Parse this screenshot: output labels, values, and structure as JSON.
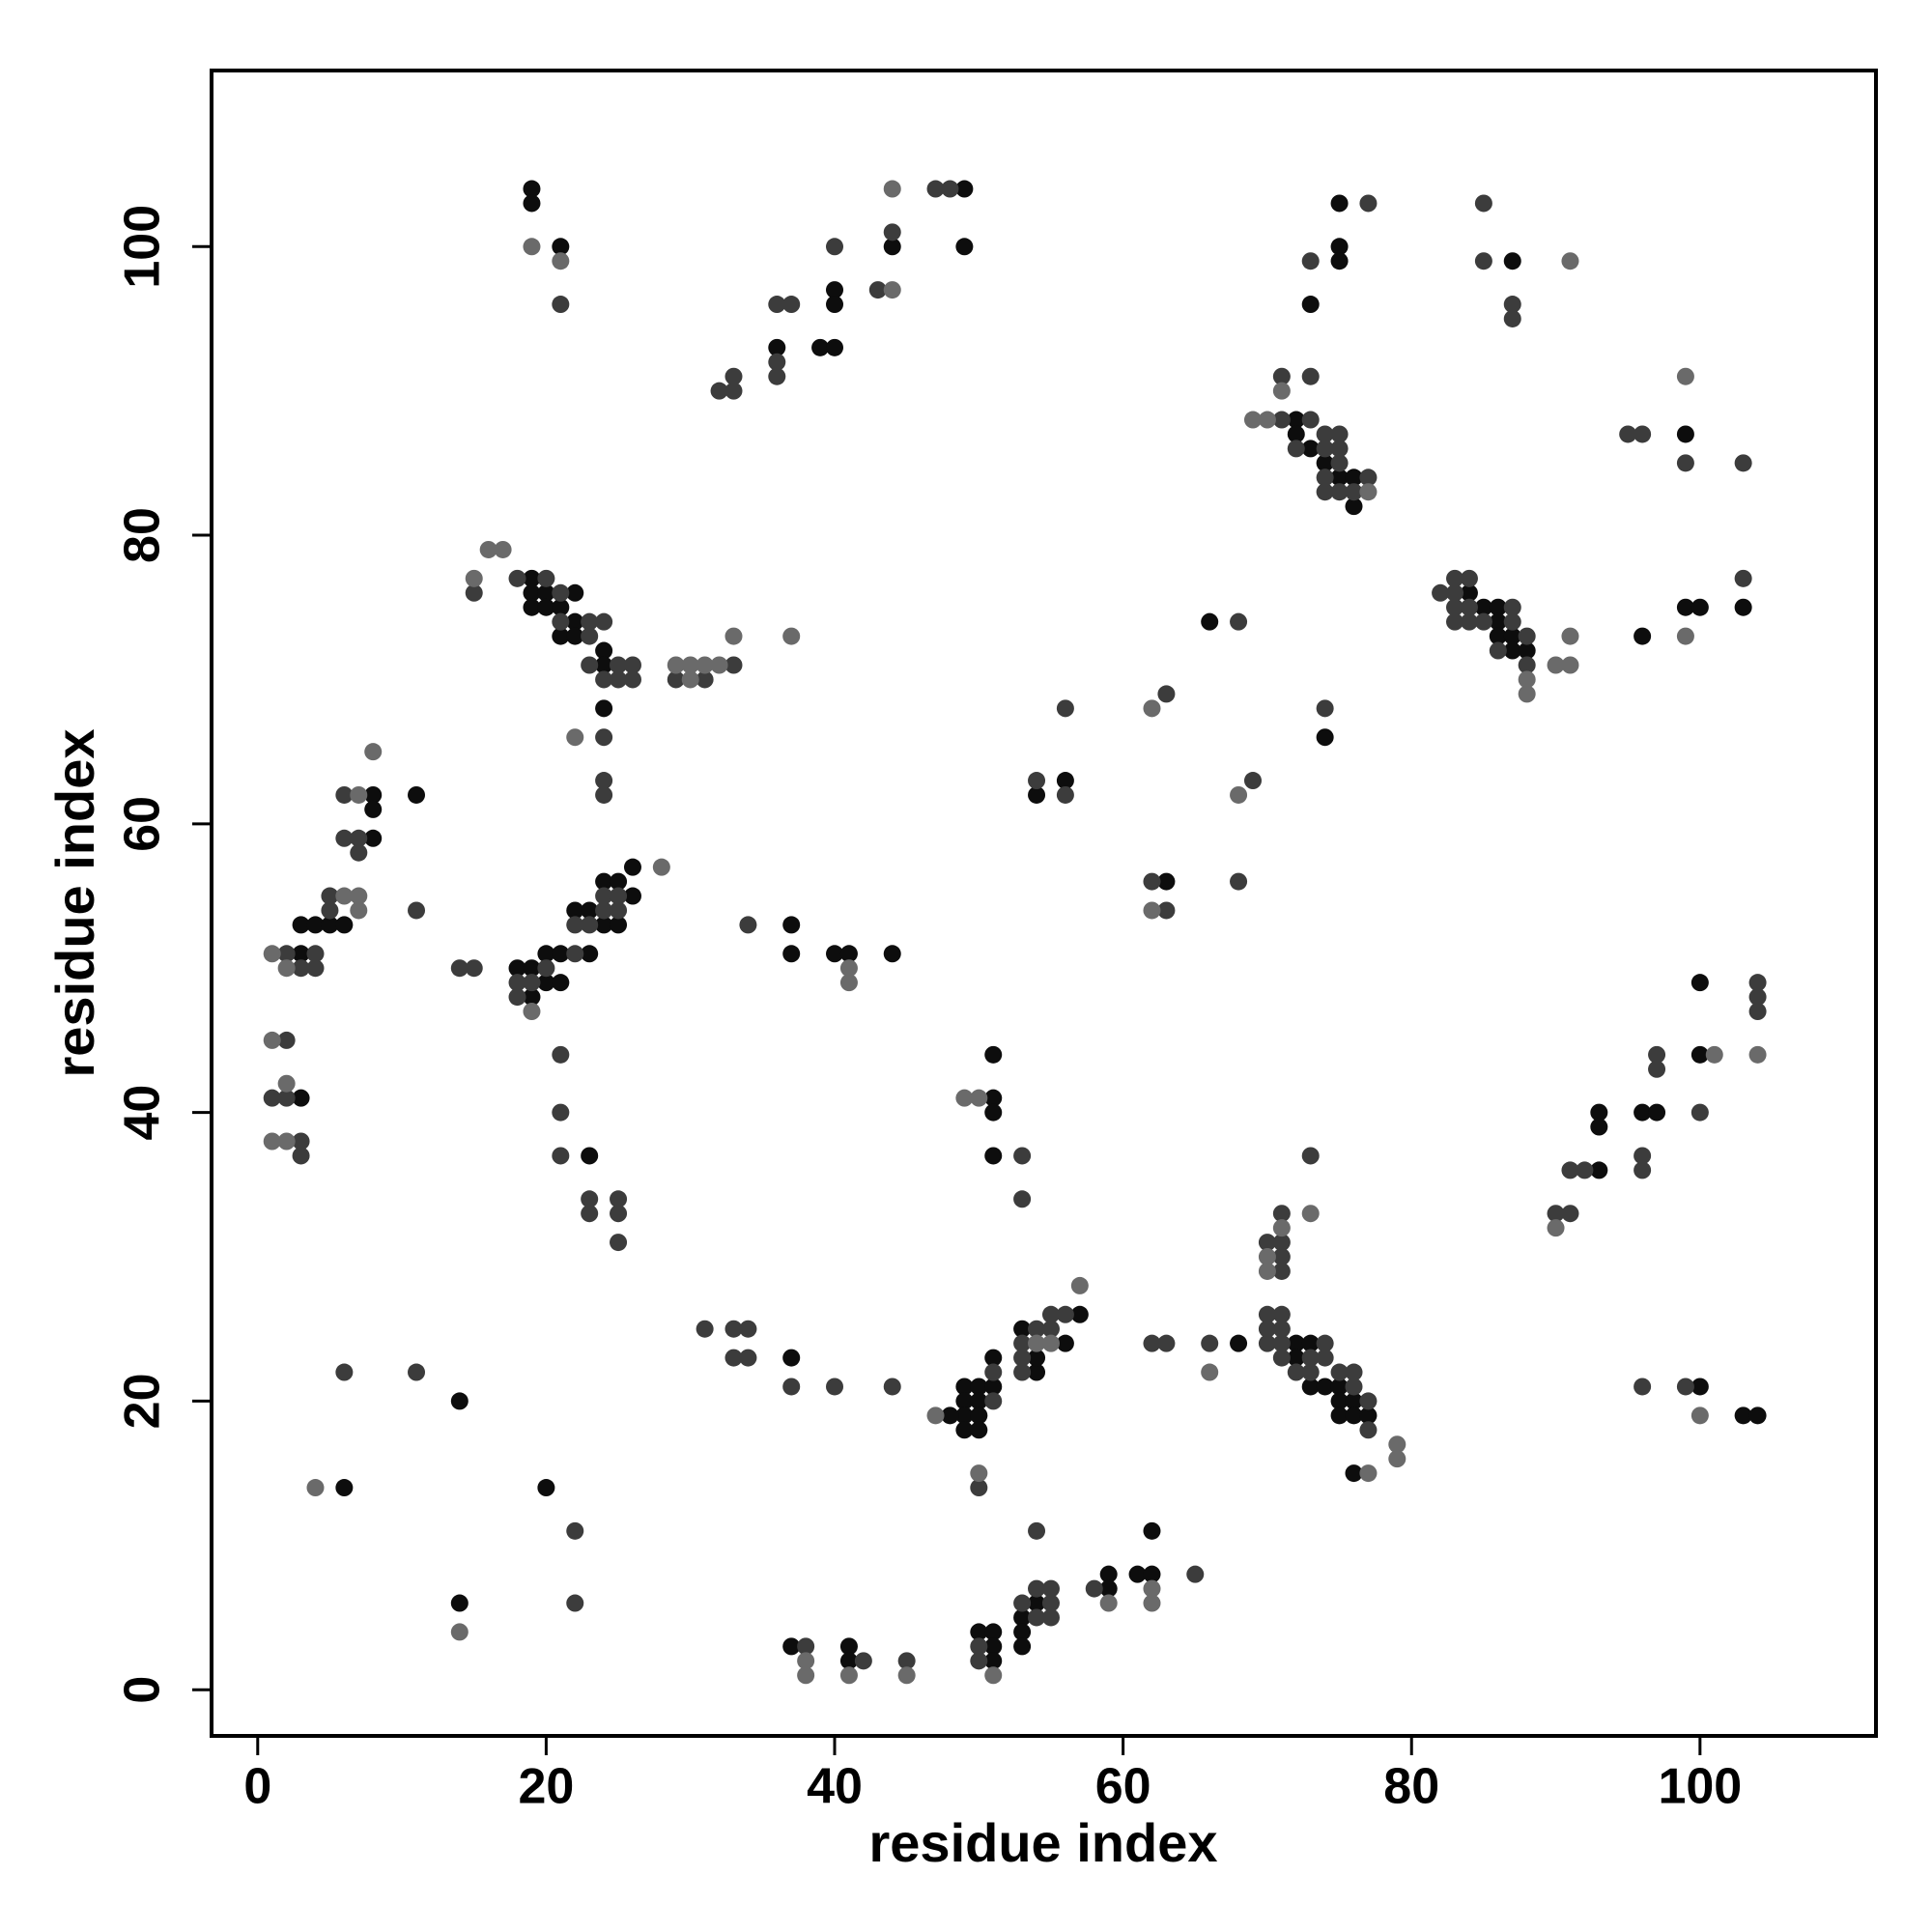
{
  "chart_data": {
    "type": "scatter",
    "xlabel": "residue index",
    "ylabel": "residue index",
    "xlim": [
      -3.2,
      112.2
    ],
    "ylim": [
      -3.2,
      112.2
    ],
    "xticks": [
      0,
      20,
      40,
      60,
      80,
      100
    ],
    "yticks": [
      0,
      20,
      40,
      60,
      80,
      100
    ],
    "series": [
      {
        "color": "#0d0d0d",
        "x": [
          19,
          19,
          21,
          36,
          39,
          40,
          40,
          40,
          44,
          49,
          49,
          75,
          75,
          75,
          73,
          87,
          72,
          72,
          73,
          74,
          75,
          76,
          76,
          99,
          19,
          19,
          20,
          19,
          20,
          21,
          22,
          22,
          21,
          22,
          24,
          24,
          24,
          56,
          54,
          66,
          74,
          84,
          85,
          86,
          86,
          86,
          87,
          87,
          88,
          96,
          99,
          100,
          103,
          63,
          8,
          8,
          8,
          3,
          4,
          5,
          6,
          3,
          18,
          19,
          20,
          19,
          20,
          21,
          21,
          22,
          23,
          24,
          25,
          26,
          24,
          25,
          23,
          26,
          37,
          37,
          40,
          41,
          44,
          3,
          23,
          51,
          51,
          51,
          51,
          100,
          100,
          93,
          93,
          93,
          96,
          97,
          53,
          54,
          54,
          51,
          49,
          50,
          51,
          49,
          50,
          49,
          50,
          49,
          50,
          48,
          56,
          57,
          68,
          72,
          73,
          72,
          73,
          74,
          75,
          75,
          76,
          75,
          76,
          77,
          76,
          37,
          100,
          103,
          104,
          6,
          20,
          14,
          62,
          54,
          53,
          53,
          53,
          50,
          51,
          51,
          51,
          59,
          59,
          61,
          62,
          41,
          41,
          37,
          14,
          11
        ],
        "y": [
          104,
          103,
          100,
          93,
          93,
          93,
          97,
          96,
          100,
          104,
          100,
          103,
          100,
          99,
          96,
          99,
          88,
          87,
          86,
          85,
          84,
          84,
          82,
          87,
          77,
          76,
          76,
          75,
          75,
          75,
          76,
          74,
          73,
          73,
          72,
          71,
          68,
          63,
          62,
          74,
          66,
          76,
          75,
          75,
          74,
          73,
          73,
          72,
          72,
          73,
          75,
          75,
          75,
          56,
          62,
          61,
          59,
          53,
          53,
          53,
          53,
          51,
          50,
          50,
          49,
          48,
          51,
          51,
          49,
          54,
          54,
          56,
          56,
          57,
          53,
          53,
          51,
          55,
          53,
          51,
          51,
          51,
          51,
          41,
          37,
          41,
          40,
          44,
          37,
          49,
          44,
          40,
          39,
          36,
          40,
          40,
          25,
          22,
          23,
          23,
          21,
          21,
          21,
          20,
          20,
          19,
          19,
          18,
          18,
          19,
          24,
          26,
          24,
          24,
          24,
          23,
          21,
          21,
          21,
          20,
          20,
          19,
          19,
          19,
          15,
          23,
          21,
          19,
          19,
          14,
          14,
          6,
          11,
          6,
          5,
          4,
          3,
          4,
          4,
          3,
          2,
          8,
          7,
          8,
          8,
          3,
          2,
          3,
          20,
          62
        ]
      },
      {
        "color": "#3c3c3c",
        "x": [
          21,
          32,
          33,
          33,
          36,
          37,
          36,
          36,
          40,
          43,
          44,
          47,
          48,
          77,
          73,
          85,
          85,
          87,
          87,
          71,
          73,
          71,
          73,
          74,
          75,
          72,
          74,
          75,
          75,
          74,
          77,
          74,
          75,
          76,
          95,
          96,
          99,
          103,
          15,
          18,
          20,
          21,
          21,
          23,
          24,
          23,
          23,
          25,
          26,
          24,
          25,
          26,
          24,
          24,
          24,
          29,
          31,
          33,
          68,
          56,
          63,
          74,
          82,
          83,
          84,
          83,
          83,
          84,
          87,
          83,
          84,
          85,
          87,
          86,
          88,
          88,
          103,
          54,
          56,
          69,
          62,
          63,
          68,
          6,
          6,
          7,
          7,
          5,
          5,
          11,
          2,
          4,
          3,
          4,
          14,
          15,
          20,
          18,
          19,
          18,
          22,
          22,
          23,
          24,
          25,
          24,
          25,
          34,
          2,
          1,
          2,
          3,
          3,
          21,
          21,
          21,
          23,
          23,
          25,
          25,
          25,
          53,
          53,
          73,
          104,
          104,
          104,
          100,
          97,
          97,
          91,
          92,
          96,
          96,
          90,
          91,
          70,
          71,
          71,
          71,
          71,
          55,
          56,
          54,
          55,
          53,
          53,
          53,
          51,
          51,
          50,
          70,
          71,
          70,
          71,
          70,
          71,
          74,
          66,
          62,
          63,
          71,
          73,
          74,
          72,
          73,
          75,
          76,
          76,
          77,
          77,
          31,
          33,
          34,
          33,
          34,
          37,
          40,
          44,
          96,
          99,
          6,
          11,
          22,
          22,
          54,
          53,
          54,
          55,
          54,
          55,
          55,
          50,
          50,
          58,
          65,
          38,
          42,
          45
        ],
        "y": [
          96,
          90,
          90,
          91,
          96,
          96,
          92,
          91,
          100,
          97,
          101,
          104,
          104,
          103,
          99,
          103,
          99,
          96,
          95,
          91,
          91,
          88,
          88,
          87,
          87,
          86,
          86,
          86,
          85,
          84,
          84,
          83,
          83,
          83,
          87,
          87,
          85,
          85,
          76,
          77,
          77,
          76,
          74,
          74,
          74,
          73,
          71,
          71,
          71,
          70,
          70,
          70,
          66,
          63,
          62,
          70,
          70,
          71,
          74,
          68,
          69,
          68,
          76,
          77,
          77,
          76,
          75,
          75,
          75,
          74,
          74,
          74,
          74,
          72,
          73,
          71,
          77,
          63,
          62,
          63,
          56,
          54,
          56,
          62,
          59,
          59,
          58,
          55,
          54,
          54,
          51,
          51,
          50,
          50,
          50,
          50,
          50,
          49,
          49,
          48,
          51,
          53,
          53,
          54,
          54,
          55,
          55,
          53,
          45,
          41,
          41,
          38,
          37,
          44,
          40,
          37,
          34,
          33,
          34,
          33,
          31,
          37,
          34,
          37,
          49,
          48,
          47,
          40,
          44,
          43,
          36,
          36,
          37,
          36,
          33,
          33,
          31,
          31,
          33,
          30,
          29,
          26,
          26,
          25,
          25,
          24,
          23,
          22,
          22,
          20,
          14,
          26,
          26,
          25,
          25,
          24,
          24,
          24,
          24,
          24,
          24,
          23,
          23,
          23,
          22,
          22,
          22,
          22,
          21,
          20,
          18,
          25,
          25,
          25,
          23,
          23,
          21,
          21,
          21,
          21,
          21,
          22,
          22,
          11,
          6,
          11,
          6,
          5,
          5,
          7,
          7,
          6,
          3,
          2,
          7,
          8,
          3,
          2,
          2
        ]
      },
      {
        "color": "#6a6a6a",
        "x": [
          19,
          21,
          44,
          91,
          99,
          16,
          17,
          15,
          8,
          37,
          62,
          68,
          1,
          1,
          1,
          2,
          2,
          4,
          14,
          41,
          41,
          28,
          19,
          22,
          57,
          50,
          47,
          49,
          50,
          66,
          79,
          79,
          77,
          100,
          104,
          101,
          88,
          88,
          90,
          91,
          38,
          38,
          41,
          45,
          51,
          59,
          62,
          62,
          29,
          30,
          30,
          31,
          32,
          69,
          70,
          71,
          77,
          54,
          55,
          70,
          70,
          71,
          73,
          90,
          99,
          91,
          33,
          7,
          6,
          7,
          7,
          2,
          44,
          62
        ],
        "y": [
          100,
          99,
          104,
          99,
          91,
          79,
          79,
          77,
          65,
          73,
          68,
          62,
          51,
          45,
          38,
          38,
          42,
          14,
          4,
          49,
          50,
          57,
          47,
          66,
          28,
          15,
          19,
          41,
          41,
          22,
          17,
          16,
          15,
          19,
          44,
          44,
          69,
          70,
          71,
          71,
          1,
          2,
          1,
          1,
          1,
          6,
          6,
          7,
          71,
          70,
          71,
          71,
          71,
          88,
          88,
          90,
          83,
          24,
          24,
          30,
          29,
          32,
          33,
          32,
          73,
          73,
          73,
          62,
          55,
          55,
          54,
          50,
          97,
          54
        ]
      }
    ]
  }
}
